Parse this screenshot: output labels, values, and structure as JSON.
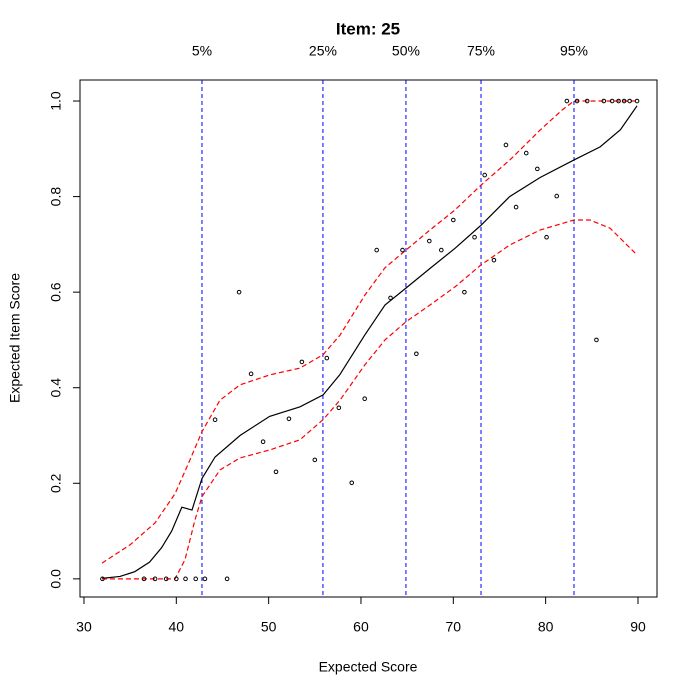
{
  "chart_data": {
    "type": "line",
    "title": "Item:  25",
    "x_label": "Expected Score",
    "y_label": "Expected Item Score",
    "xlim": [
      29.57,
      92.06
    ],
    "ylim": [
      -0.038,
      1.044
    ],
    "xticks": [
      30,
      40,
      50,
      60,
      70,
      80,
      90
    ],
    "yticks": [
      {
        "value": 0,
        "label": "0.0"
      },
      {
        "value": 0.2,
        "label": "0.2"
      },
      {
        "value": 0.4,
        "label": "0.4"
      },
      {
        "value": 0.6,
        "label": "0.6"
      },
      {
        "value": 0.8,
        "label": "0.8"
      },
      {
        "value": 1,
        "label": "1.0"
      }
    ],
    "vlines": [
      {
        "value": 42.78,
        "label": "5%"
      },
      {
        "value": 55.88,
        "label": "25%"
      },
      {
        "value": 64.87,
        "label": "50%"
      },
      {
        "value": 73.0,
        "label": "75%"
      },
      {
        "value": 83.07,
        "label": "95%"
      }
    ],
    "vline_color": "#0000ff",
    "series": [
      {
        "type": "line",
        "color": "#000000",
        "dashed": false,
        "x": [
          31.95,
          33.9,
          35.5,
          37.1,
          38.4,
          39.5,
          40.6,
          41.7,
          42.78,
          44.2,
          46.9,
          50.1,
          53.4,
          55.9,
          57.7,
          60.4,
          62.6,
          64.9,
          67.5,
          70.2,
          73.0,
          76.1,
          79.4,
          83.1,
          85.9,
          88.1,
          89.9
        ],
        "values": [
          0.001,
          0.005,
          0.015,
          0.035,
          0.065,
          0.1,
          0.15,
          0.144,
          0.21,
          0.255,
          0.3,
          0.34,
          0.36,
          0.385,
          0.427,
          0.51,
          0.573,
          0.609,
          0.65,
          0.692,
          0.74,
          0.8,
          0.84,
          0.877,
          0.904,
          0.94,
          0.99
        ]
      },
      {
        "type": "line",
        "color": "#ff0000",
        "dashed": true,
        "x": [
          31.95,
          34.98,
          37.69,
          39.86,
          41.48,
          42.78,
          44.73,
          46.9,
          50.15,
          53.39,
          55.89,
          57.73,
          60.43,
          62.6,
          64.87,
          67.47,
          70.18,
          73.0,
          76.14,
          79.39,
          81.77,
          83.07,
          89.9
        ],
        "values": [
          0.033,
          0.071,
          0.117,
          0.178,
          0.249,
          0.308,
          0.374,
          0.406,
          0.427,
          0.441,
          0.469,
          0.51,
          0.594,
          0.651,
          0.688,
          0.73,
          0.772,
          0.824,
          0.877,
          0.939,
          0.981,
          1,
          1
        ]
      },
      {
        "type": "line",
        "color": "#ff0000",
        "dashed": true,
        "x": [
          31.95,
          37.69,
          39.86,
          40.94,
          42.02,
          42.78,
          44.73,
          46.9,
          50.15,
          53.39,
          55.89,
          57.73,
          60.43,
          62.6,
          64.87,
          67.47,
          70.18,
          73.0,
          76.14,
          79.39,
          83.07,
          84.8,
          86.97,
          89.9
        ],
        "values": [
          0,
          0,
          0,
          0.04,
          0.123,
          0.172,
          0.228,
          0.253,
          0.27,
          0.291,
          0.333,
          0.374,
          0.448,
          0.5,
          0.538,
          0.573,
          0.611,
          0.657,
          0.699,
          0.73,
          0.751,
          0.751,
          0.734,
          0.678
        ]
      },
      {
        "type": "scatter",
        "color": "#000000",
        "x": [
          32.0,
          36.5,
          37.7,
          38.9,
          40.0,
          41.0,
          42.1,
          43.1,
          45.5,
          44.2,
          46.8,
          48.1,
          49.4,
          50.8,
          52.2,
          53.6,
          55.0,
          56.3,
          57.6,
          59.0,
          60.4,
          61.7,
          63.2,
          64.5,
          66.0,
          67.4,
          68.7,
          70.0,
          71.2,
          72.3,
          73.4,
          74.4,
          75.7,
          76.8,
          77.9,
          79.1,
          80.1,
          81.2,
          82.3,
          83.4,
          84.5,
          85.5,
          86.3,
          87.2,
          87.9,
          88.5,
          89.1,
          89.9
        ],
        "values": [
          0,
          0,
          0,
          0,
          0,
          0,
          0,
          0,
          0,
          0.333,
          0.6,
          0.429,
          0.287,
          0.224,
          0.335,
          0.454,
          0.249,
          0.462,
          0.358,
          0.201,
          0.377,
          0.688,
          0.588,
          0.688,
          0.471,
          0.707,
          0.688,
          0.751,
          0.6,
          0.715,
          0.845,
          0.667,
          0.908,
          0.778,
          0.891,
          0.858,
          0.715,
          0.801,
          1,
          1,
          1,
          0.5,
          1,
          1,
          1,
          1,
          1,
          1
        ]
      }
    ]
  }
}
